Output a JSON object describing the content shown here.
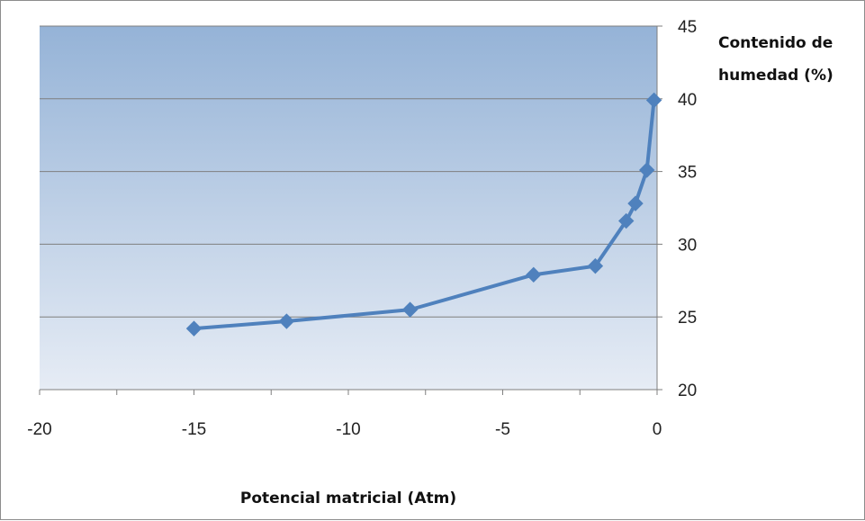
{
  "chart_data": {
    "type": "line",
    "title": "",
    "xlabel": "Potencial matricial (Atm)",
    "ylabel_lines": [
      "Contenido de",
      "humedad (%)"
    ],
    "xlim": [
      -20,
      0
    ],
    "ylim": [
      20,
      45
    ],
    "x_ticks": [
      -20,
      -15,
      -10,
      -5,
      0
    ],
    "y_ticks": [
      20,
      25,
      30,
      35,
      40,
      45
    ],
    "y_axis_position": "right",
    "grid": "horizontal",
    "legend": "none",
    "series": [
      {
        "color": "#4f81bd",
        "marker": "diamond",
        "points": [
          {
            "x": -15,
            "y": 24.2
          },
          {
            "x": -12,
            "y": 24.7
          },
          {
            "x": -8,
            "y": 25.5
          },
          {
            "x": -4,
            "y": 27.9
          },
          {
            "x": -2,
            "y": 28.5
          },
          {
            "x": -1,
            "y": 31.6
          },
          {
            "x": -0.7,
            "y": 32.8
          },
          {
            "x": -0.33,
            "y": 35.1
          },
          {
            "x": -0.1,
            "y": 39.9
          }
        ]
      }
    ],
    "colors": {
      "plot_top": "#95b3d7",
      "plot_bottom": "#e6ecf5",
      "gridline": "#7f7f7f",
      "axis": "#7f7f7f"
    }
  }
}
